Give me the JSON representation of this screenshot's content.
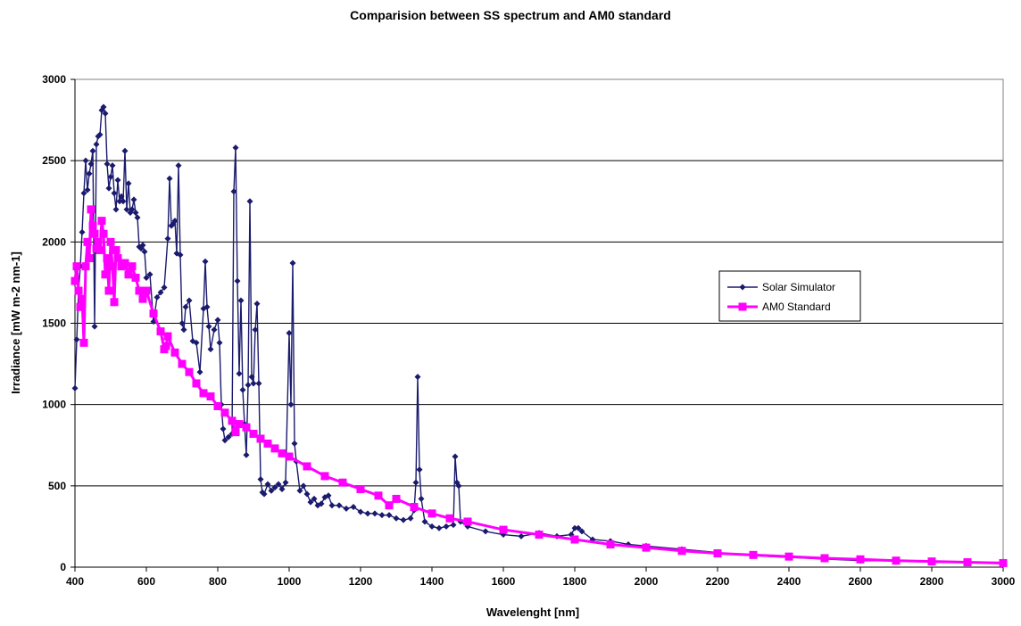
{
  "chart_data": {
    "type": "line",
    "title": "Comparision between SS spectrum and AM0 standard",
    "xlabel": "Wavelenght [nm]",
    "ylabel": "Irradiance [mW m-2 nm-1]",
    "xlim": [
      400,
      3000
    ],
    "ylim": [
      0,
      3000
    ],
    "xticks": [
      400,
      600,
      800,
      1000,
      1200,
      1400,
      1600,
      1800,
      2000,
      2200,
      2400,
      2600,
      2800,
      3000
    ],
    "yticks": [
      0,
      500,
      1000,
      1500,
      2000,
      2500,
      3000
    ],
    "grid": "horizontal",
    "legend_position": "right",
    "series": [
      {
        "name": "Solar Simulator",
        "color": "#1a1a6e",
        "marker": "diamond",
        "x": [
          400,
          405,
          410,
          415,
          420,
          425,
          430,
          435,
          440,
          445,
          450,
          455,
          460,
          465,
          470,
          475,
          480,
          485,
          490,
          495,
          500,
          505,
          510,
          515,
          520,
          525,
          530,
          535,
          540,
          545,
          550,
          555,
          560,
          565,
          570,
          575,
          580,
          585,
          590,
          595,
          600,
          610,
          620,
          630,
          640,
          650,
          660,
          665,
          670,
          675,
          680,
          685,
          690,
          695,
          700,
          705,
          710,
          720,
          730,
          740,
          750,
          760,
          765,
          770,
          775,
          780,
          790,
          800,
          805,
          810,
          815,
          820,
          830,
          840,
          845,
          850,
          855,
          860,
          865,
          870,
          875,
          880,
          885,
          890,
          895,
          900,
          905,
          910,
          915,
          920,
          925,
          930,
          940,
          950,
          960,
          970,
          980,
          990,
          1000,
          1005,
          1010,
          1015,
          1020,
          1030,
          1040,
          1050,
          1060,
          1070,
          1080,
          1090,
          1100,
          1110,
          1120,
          1140,
          1160,
          1180,
          1200,
          1220,
          1240,
          1260,
          1280,
          1300,
          1320,
          1340,
          1350,
          1355,
          1360,
          1365,
          1370,
          1380,
          1400,
          1420,
          1440,
          1460,
          1465,
          1470,
          1475,
          1480,
          1500,
          1550,
          1600,
          1650,
          1700,
          1750,
          1790,
          1800,
          1810,
          1820,
          1850,
          1900,
          1950,
          2000,
          2100,
          2200,
          2300,
          2400,
          2500,
          2600,
          2700,
          2800,
          2900,
          3000
        ],
        "y": [
          1100,
          1400,
          1700,
          1850,
          2060,
          2300,
          2500,
          2320,
          2420,
          2480,
          2560,
          1480,
          2600,
          2650,
          2660,
          2810,
          2830,
          2790,
          2480,
          2330,
          2400,
          2470,
          2300,
          2200,
          2380,
          2250,
          2280,
          2250,
          2560,
          2200,
          2360,
          2180,
          2200,
          2260,
          2180,
          2150,
          1970,
          1960,
          1980,
          1940,
          1780,
          1800,
          1510,
          1660,
          1690,
          1720,
          2020,
          2390,
          2100,
          2110,
          2130,
          1930,
          2470,
          1920,
          1500,
          1460,
          1600,
          1640,
          1390,
          1380,
          1200,
          1590,
          1880,
          1600,
          1480,
          1340,
          1460,
          1520,
          1380,
          1000,
          850,
          780,
          800,
          820,
          2310,
          2580,
          1760,
          1190,
          1640,
          1090,
          880,
          690,
          1120,
          2250,
          1170,
          1130,
          1460,
          1620,
          1130,
          540,
          460,
          450,
          510,
          470,
          490,
          510,
          480,
          520,
          1440,
          1000,
          1870,
          760,
          650,
          470,
          500,
          450,
          400,
          420,
          380,
          390,
          430,
          440,
          380,
          380,
          360,
          370,
          340,
          330,
          330,
          320,
          320,
          300,
          290,
          300,
          350,
          520,
          1170,
          600,
          420,
          280,
          250,
          240,
          250,
          260,
          680,
          520,
          500,
          280,
          250,
          220,
          200,
          190,
          210,
          190,
          200,
          240,
          240,
          220,
          170,
          160,
          140,
          130,
          110,
          90,
          70,
          60,
          50,
          40,
          40,
          30,
          30,
          30
        ]
      },
      {
        "name": "AM0 Standard",
        "color": "#ff00ff",
        "marker": "square",
        "x": [
          400,
          405,
          410,
          415,
          420,
          425,
          430,
          435,
          440,
          445,
          450,
          455,
          460,
          465,
          470,
          475,
          480,
          485,
          490,
          495,
          500,
          505,
          510,
          515,
          520,
          530,
          540,
          550,
          560,
          570,
          580,
          590,
          600,
          620,
          640,
          650,
          655,
          660,
          680,
          700,
          720,
          740,
          760,
          780,
          800,
          820,
          840,
          850,
          860,
          880,
          900,
          920,
          940,
          960,
          980,
          1000,
          1050,
          1100,
          1150,
          1200,
          1250,
          1280,
          1300,
          1350,
          1400,
          1450,
          1500,
          1600,
          1700,
          1800,
          1900,
          2000,
          2100,
          2200,
          2300,
          2400,
          2500,
          2600,
          2700,
          2800,
          2900,
          3000
        ],
        "y": [
          1760,
          1850,
          1700,
          1600,
          1650,
          1380,
          1850,
          2000,
          1900,
          2200,
          2100,
          2050,
          1960,
          2000,
          1950,
          2130,
          2050,
          1800,
          1900,
          1700,
          2000,
          1850,
          1630,
          1950,
          1900,
          1850,
          1870,
          1800,
          1850,
          1780,
          1700,
          1650,
          1700,
          1560,
          1450,
          1340,
          1360,
          1420,
          1320,
          1250,
          1200,
          1130,
          1070,
          1050,
          990,
          950,
          900,
          830,
          880,
          860,
          820,
          790,
          760,
          730,
          700,
          680,
          620,
          560,
          520,
          480,
          440,
          380,
          420,
          370,
          330,
          300,
          280,
          230,
          200,
          170,
          140,
          120,
          100,
          85,
          75,
          65,
          55,
          48,
          40,
          35,
          30,
          25
        ]
      }
    ]
  }
}
